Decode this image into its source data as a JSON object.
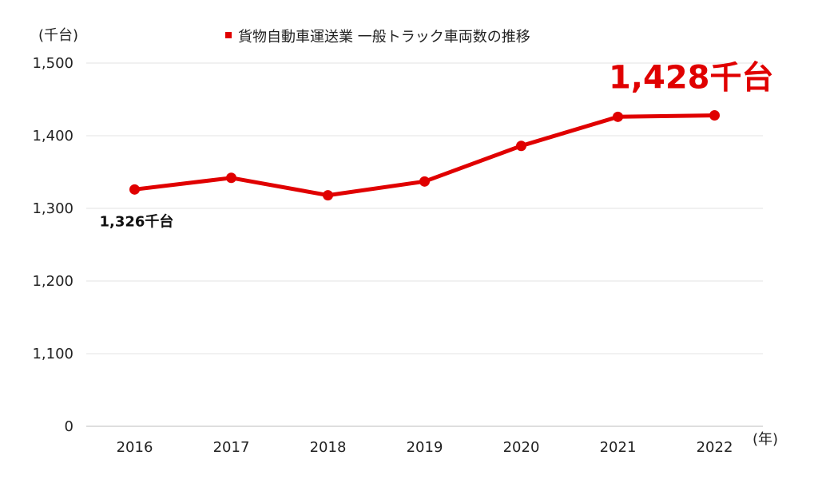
{
  "chart_data": {
    "type": "line",
    "y_unit_label": "(千台)",
    "x_unit_label": "(年)",
    "categories": [
      "2016",
      "2017",
      "2018",
      "2019",
      "2020",
      "2021",
      "2022"
    ],
    "series": [
      {
        "name": "貨物自動車運送業 一般トラック車両数の推移",
        "values": [
          1326,
          1342,
          1318,
          1337,
          1386,
          1426,
          1428
        ],
        "color": "#e00000"
      }
    ],
    "y_ticks": [
      0,
      1100,
      1200,
      1300,
      1400,
      1500
    ],
    "y_tick_labels": [
      "0",
      "1,100",
      "1,200",
      "1,300",
      "1,400",
      "1,500"
    ],
    "ylim": [
      1000,
      1500
    ],
    "y_axis_break": "0 shown at baseline, axis starts at 1,000",
    "grid": true,
    "legend_position": "top-center",
    "annotations": {
      "start": "1,326千台",
      "end": "1,428千台",
      "end_color": "#e00000"
    }
  }
}
